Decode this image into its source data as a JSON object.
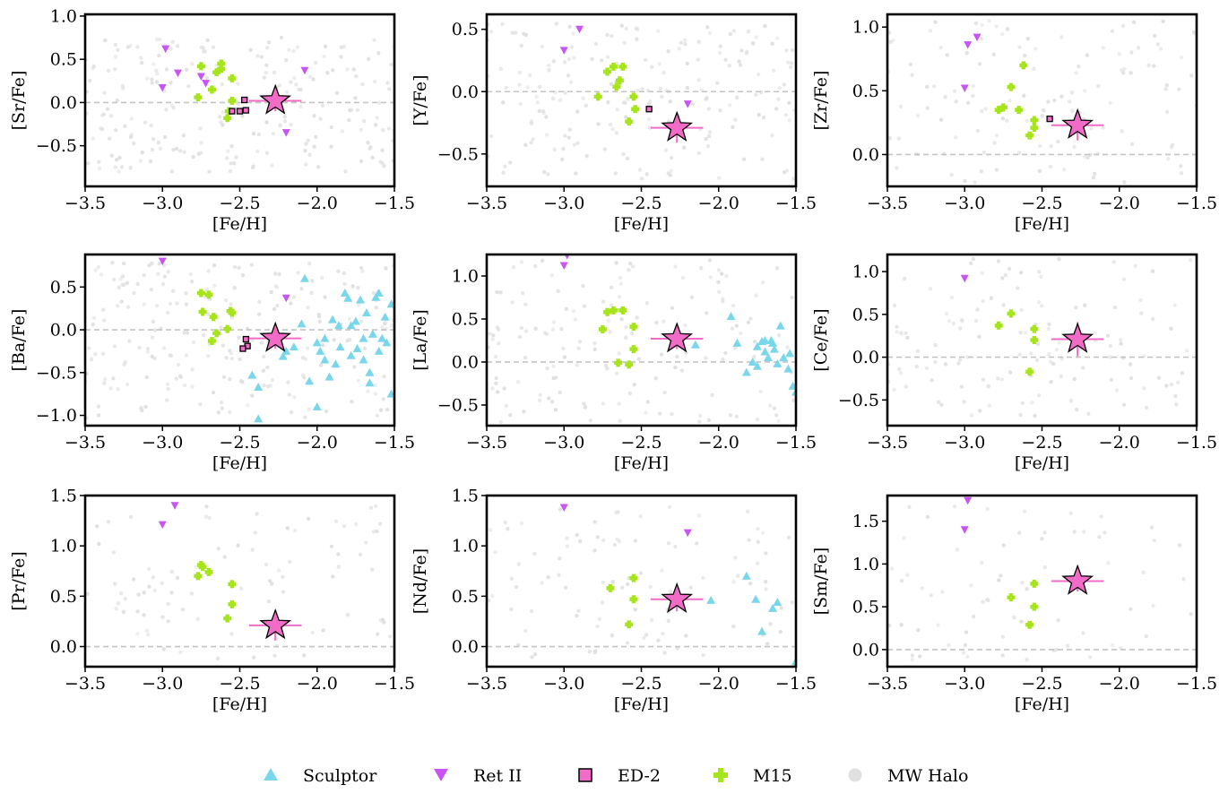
{
  "figure": {
    "legend": [
      {
        "name": "Sculptor",
        "marker": "triangle-up",
        "color": "#7ad6ea"
      },
      {
        "name": "Ret II",
        "marker": "triangle-down",
        "color": "#c855f2"
      },
      {
        "name": "ED-2",
        "marker": "square",
        "color": "#f26bc6"
      },
      {
        "name": "M15",
        "marker": "plus",
        "color": "#a6e41c"
      },
      {
        "name": "MW Halo",
        "marker": "circle",
        "color": "#e0e0e0"
      }
    ],
    "star_color": "#f26bc6"
  },
  "chart_data": [
    {
      "type": "scatter",
      "ylabel": "[Sr/Fe]",
      "xlabel": "[Fe/H]",
      "xlim": [
        -3.5,
        -1.5
      ],
      "ylim": [
        -0.97,
        1.02
      ],
      "xticks": [
        "−3.5",
        "−3.0",
        "−2.5",
        "−2.0",
        "−1.5"
      ],
      "yticks": [
        {
          "v": 1.0,
          "t": "1.0"
        },
        {
          "v": 0.5,
          "t": "0.5"
        },
        {
          "v": 0.0,
          "t": "0.0"
        },
        {
          "v": -0.5,
          "t": "−0.5"
        }
      ],
      "halo_range": [
        -0.8,
        0.75
      ],
      "halo_n": 220,
      "ret2": [
        [
          -2.98,
          0.62
        ],
        [
          -3.0,
          0.17
        ],
        [
          -2.9,
          0.34
        ],
        [
          -2.75,
          0.3
        ],
        [
          -2.72,
          0.22
        ],
        [
          -2.2,
          -0.35
        ],
        [
          -2.08,
          0.37
        ]
      ],
      "m15": [
        [
          -2.75,
          0.42
        ],
        [
          -2.65,
          0.35
        ],
        [
          -2.62,
          0.45
        ],
        [
          -2.62,
          0.39
        ],
        [
          -2.68,
          0.15
        ],
        [
          -2.55,
          0.28
        ],
        [
          -2.55,
          0.02
        ],
        [
          -2.58,
          -0.18
        ],
        [
          -2.57,
          -0.1
        ],
        [
          -2.77,
          0.06
        ]
      ],
      "ed2": [
        [
          -2.55,
          -0.1
        ],
        [
          -2.5,
          -0.1
        ],
        [
          -2.46,
          -0.09
        ],
        [
          -2.47,
          0.03
        ]
      ],
      "sculptor": [],
      "star": {
        "x": -2.27,
        "y": 0.02,
        "xerr": 0.17,
        "yerr": 0.12
      }
    },
    {
      "type": "scatter",
      "ylabel": "[Y/Fe]",
      "xlabel": "[Fe/H]",
      "xlim": [
        -3.5,
        -1.5
      ],
      "ylim": [
        -0.76,
        0.62
      ],
      "xticks": [
        "−3.5",
        "−3.0",
        "−2.5",
        "−2.0",
        "−1.5"
      ],
      "yticks": [
        {
          "v": 0.5,
          "t": "0.5"
        },
        {
          "v": 0.0,
          "t": "0.0"
        },
        {
          "v": -0.5,
          "t": "−0.5"
        }
      ],
      "halo_range": [
        -0.7,
        0.55
      ],
      "halo_n": 200,
      "ret2": [
        [
          -3.0,
          0.33
        ],
        [
          -2.9,
          0.5
        ],
        [
          -2.2,
          -0.1
        ]
      ],
      "m15": [
        [
          -2.72,
          0.16
        ],
        [
          -2.68,
          0.2
        ],
        [
          -2.62,
          0.2
        ],
        [
          -2.64,
          0.09
        ],
        [
          -2.66,
          0.04
        ],
        [
          -2.78,
          -0.04
        ],
        [
          -2.55,
          -0.04
        ],
        [
          -2.54,
          -0.14
        ],
        [
          -2.58,
          -0.24
        ]
      ],
      "ed2": [
        [
          -2.45,
          -0.14
        ]
      ],
      "sculptor": [],
      "star": {
        "x": -2.27,
        "y": -0.29,
        "xerr": 0.17,
        "yerr": 0.12
      }
    },
    {
      "type": "scatter",
      "ylabel": "[Zr/Fe]",
      "xlabel": "[Fe/H]",
      "xlim": [
        -3.5,
        -1.5
      ],
      "ylim": [
        -0.25,
        1.1
      ],
      "xticks": [
        "−3.5",
        "−3.0",
        "−2.5",
        "−2.0",
        "−1.5"
      ],
      "yticks": [
        {
          "v": 1.0,
          "t": "1.0"
        },
        {
          "v": 0.5,
          "t": "0.5"
        },
        {
          "v": 0.0,
          "t": "0.0"
        }
      ],
      "halo_range": [
        -0.22,
        1.05
      ],
      "halo_n": 130,
      "ret2": [
        [
          -2.98,
          0.86
        ],
        [
          -2.92,
          0.92
        ],
        [
          -3.0,
          0.52
        ]
      ],
      "m15": [
        [
          -2.62,
          0.7
        ],
        [
          -2.7,
          0.53
        ],
        [
          -2.75,
          0.37
        ],
        [
          -2.78,
          0.35
        ],
        [
          -2.65,
          0.35
        ],
        [
          -2.55,
          0.27
        ],
        [
          -2.55,
          0.21
        ],
        [
          -2.58,
          0.15
        ]
      ],
      "ed2": [
        [
          -2.45,
          0.28
        ]
      ],
      "sculptor": [],
      "star": {
        "x": -2.27,
        "y": 0.23,
        "xerr": 0.17,
        "yerr": 0.12
      }
    },
    {
      "type": "scatter",
      "ylabel": "[Ba/Fe]",
      "xlabel": "[Fe/H]",
      "xlim": [
        -3.5,
        -1.5
      ],
      "ylim": [
        -1.12,
        0.88
      ],
      "xticks": [
        "−3.5",
        "−3.0",
        "−2.5",
        "−2.0",
        "−1.5"
      ],
      "yticks": [
        {
          "v": 0.5,
          "t": "0.5"
        },
        {
          "v": 0.0,
          "t": "0.0"
        },
        {
          "v": -0.5,
          "t": "−0.5"
        },
        {
          "v": -1.0,
          "t": "−1.0"
        }
      ],
      "halo_range": [
        -1.05,
        0.8
      ],
      "halo_n": 220,
      "ret2": [
        [
          -3.0,
          0.8
        ],
        [
          -2.2,
          0.37
        ]
      ],
      "m15": [
        [
          -2.75,
          0.43
        ],
        [
          -2.7,
          0.41
        ],
        [
          -2.74,
          0.21
        ],
        [
          -2.67,
          0.15
        ],
        [
          -2.56,
          0.22
        ],
        [
          -2.55,
          0.2
        ],
        [
          -2.58,
          0.01
        ],
        [
          -2.65,
          -0.04
        ],
        [
          -2.68,
          -0.13
        ]
      ],
      "ed2": [
        [
          -2.46,
          -0.11
        ],
        [
          -2.45,
          -0.19
        ],
        [
          -2.48,
          -0.22
        ]
      ],
      "sculptor": [
        [
          -2.42,
          -0.53
        ],
        [
          -2.38,
          -0.67
        ],
        [
          -2.38,
          -1.04
        ],
        [
          -2.2,
          -0.25
        ],
        [
          -2.22,
          -0.31
        ],
        [
          -2.15,
          -0.2
        ],
        [
          -2.1,
          0.07
        ],
        [
          -2.08,
          0.6
        ],
        [
          -2.05,
          -0.6
        ],
        [
          -2.0,
          -0.9
        ],
        [
          -1.98,
          -0.25
        ],
        [
          -1.95,
          -0.1
        ],
        [
          -1.92,
          -0.55
        ],
        [
          -1.9,
          0.12
        ],
        [
          -1.88,
          -0.4
        ],
        [
          -1.86,
          0.05
        ],
        [
          -1.82,
          0.43
        ],
        [
          -1.8,
          0.37
        ],
        [
          -1.78,
          -0.3
        ],
        [
          -1.75,
          0.1
        ],
        [
          -1.74,
          -0.22
        ],
        [
          -1.72,
          0.35
        ],
        [
          -1.7,
          -0.1
        ],
        [
          -1.68,
          0.2
        ],
        [
          -1.66,
          -0.5
        ],
        [
          -1.66,
          -0.62
        ],
        [
          -1.64,
          -0.05
        ],
        [
          -1.62,
          0.38
        ],
        [
          -1.6,
          0.43
        ],
        [
          -1.58,
          -0.1
        ],
        [
          -1.56,
          0.15
        ],
        [
          -1.55,
          -0.15
        ],
        [
          -1.52,
          -0.75
        ],
        [
          -1.52,
          0.3
        ],
        [
          -1.85,
          -0.2
        ],
        [
          -1.95,
          -0.35
        ],
        [
          -2.0,
          -0.15
        ],
        [
          -1.78,
          0.05
        ],
        [
          -1.7,
          -0.35
        ],
        [
          -1.6,
          -0.25
        ]
      ],
      "star": {
        "x": -2.27,
        "y": -0.1,
        "xerr": 0.17,
        "yerr": 0.12
      }
    },
    {
      "type": "scatter",
      "ylabel": "[La/Fe]",
      "xlabel": "[Fe/H]",
      "xlim": [
        -3.5,
        -1.5
      ],
      "ylim": [
        -0.74,
        1.25
      ],
      "xticks": [
        "−3.5",
        "−3.0",
        "−2.5",
        "−2.0",
        "−1.5"
      ],
      "yticks": [
        {
          "v": 1.0,
          "t": "1.0"
        },
        {
          "v": 0.5,
          "t": "0.5"
        },
        {
          "v": 0.0,
          "t": "0.0"
        },
        {
          "v": -0.5,
          "t": "−0.5"
        }
      ],
      "halo_range": [
        -0.7,
        1.2
      ],
      "halo_n": 160,
      "ret2": [
        [
          -3.0,
          1.12
        ],
        [
          -2.98,
          1.24
        ]
      ],
      "m15": [
        [
          -2.72,
          0.58
        ],
        [
          -2.68,
          0.6
        ],
        [
          -2.62,
          0.6
        ],
        [
          -2.75,
          0.38
        ],
        [
          -2.55,
          0.41
        ],
        [
          -2.55,
          0.15
        ],
        [
          -2.65,
          -0.01
        ],
        [
          -2.58,
          -0.03
        ]
      ],
      "ed2": [],
      "sculptor": [
        [
          -2.15,
          0.2
        ],
        [
          -1.92,
          0.53
        ],
        [
          -1.88,
          0.22
        ],
        [
          -1.82,
          -0.12
        ],
        [
          -1.78,
          0.0
        ],
        [
          -1.75,
          0.18
        ],
        [
          -1.72,
          0.24
        ],
        [
          -1.7,
          0.12
        ],
        [
          -1.68,
          0.05
        ],
        [
          -1.66,
          0.25
        ],
        [
          -1.64,
          0.15
        ],
        [
          -1.62,
          -0.02
        ],
        [
          -1.6,
          0.42
        ],
        [
          -1.58,
          0.05
        ],
        [
          -1.55,
          -0.08
        ],
        [
          -1.54,
          0.1
        ],
        [
          -1.52,
          -0.28
        ],
        [
          -1.5,
          -0.35
        ],
        [
          -1.7,
          0.25
        ],
        [
          -1.75,
          -0.05
        ],
        [
          -1.65,
          0.22
        ]
      ],
      "star": {
        "x": -2.27,
        "y": 0.27,
        "xerr": 0.17,
        "yerr": 0.12
      }
    },
    {
      "type": "scatter",
      "ylabel": "[Ce/Fe]",
      "xlabel": "[Fe/H]",
      "xlim": [
        -3.5,
        -1.5
      ],
      "ylim": [
        -0.8,
        1.2
      ],
      "xticks": [
        "−3.5",
        "−3.0",
        "−2.5",
        "−2.0",
        "−1.5"
      ],
      "yticks": [
        {
          "v": 1.0,
          "t": "1.0"
        },
        {
          "v": 0.5,
          "t": "0.5"
        },
        {
          "v": 0.0,
          "t": "0.0"
        },
        {
          "v": -0.5,
          "t": "−0.5"
        }
      ],
      "halo_range": [
        -0.7,
        1.15
      ],
      "halo_n": 130,
      "ret2": [
        [
          -3.0,
          0.92
        ]
      ],
      "m15": [
        [
          -2.7,
          0.51
        ],
        [
          -2.78,
          0.37
        ],
        [
          -2.55,
          0.33
        ],
        [
          -2.55,
          0.2
        ],
        [
          -2.58,
          -0.17
        ]
      ],
      "ed2": [],
      "sculptor": [],
      "star": {
        "x": -2.27,
        "y": 0.21,
        "xerr": 0.17,
        "yerr": 0.2
      }
    },
    {
      "type": "scatter",
      "ylabel": "[Pr/Fe]",
      "xlabel": "[Fe/H]",
      "xlim": [
        -3.5,
        -1.5
      ],
      "ylim": [
        -0.2,
        1.5
      ],
      "xticks": [
        "−3.5",
        "−3.0",
        "−2.5",
        "−2.0",
        "−1.5"
      ],
      "yticks": [
        {
          "v": 1.5,
          "t": "1.5"
        },
        {
          "v": 1.0,
          "t": "1.0"
        },
        {
          "v": 0.5,
          "t": "0.5"
        },
        {
          "v": 0.0,
          "t": "0.0"
        }
      ],
      "halo_range": [
        -0.15,
        1.4
      ],
      "halo_n": 90,
      "ret2": [
        [
          -3.0,
          1.21
        ],
        [
          -2.92,
          1.4
        ]
      ],
      "m15": [
        [
          -2.75,
          0.81
        ],
        [
          -2.74,
          0.79
        ],
        [
          -2.77,
          0.7
        ],
        [
          -2.7,
          0.74
        ],
        [
          -2.55,
          0.62
        ],
        [
          -2.55,
          0.42
        ],
        [
          -2.58,
          0.28
        ]
      ],
      "ed2": [],
      "sculptor": [],
      "star": {
        "x": -2.27,
        "y": 0.21,
        "xerr": 0.17,
        "yerr": 0.15
      }
    },
    {
      "type": "scatter",
      "ylabel": "[Nd/Fe]",
      "xlabel": "[Fe/H]",
      "xlim": [
        -3.5,
        -1.5
      ],
      "ylim": [
        -0.2,
        1.5
      ],
      "xticks": [
        "−3.5",
        "−3.0",
        "−2.5",
        "−2.0",
        "−1.5"
      ],
      "yticks": [
        {
          "v": 1.5,
          "t": "1.5"
        },
        {
          "v": 1.0,
          "t": "1.0"
        },
        {
          "v": 0.5,
          "t": "0.5"
        },
        {
          "v": 0.0,
          "t": "0.0"
        }
      ],
      "halo_range": [
        -0.15,
        1.4
      ],
      "halo_n": 100,
      "ret2": [
        [
          -3.0,
          1.38
        ],
        [
          -2.2,
          1.13
        ]
      ],
      "m15": [
        [
          -2.7,
          0.58
        ],
        [
          -2.55,
          0.68
        ],
        [
          -2.55,
          0.47
        ],
        [
          -2.58,
          0.22
        ]
      ],
      "ed2": [],
      "sculptor": [
        [
          -2.05,
          0.46
        ],
        [
          -1.82,
          0.7
        ],
        [
          -1.76,
          0.47
        ],
        [
          -1.72,
          0.15
        ],
        [
          -1.65,
          0.38
        ],
        [
          -1.62,
          0.44
        ],
        [
          -1.5,
          -0.15
        ]
      ],
      "star": {
        "x": -2.27,
        "y": 0.47,
        "xerr": 0.17,
        "yerr": 0.12
      }
    },
    {
      "type": "scatter",
      "ylabel": "[Sm/Fe]",
      "xlabel": "[Fe/H]",
      "xlim": [
        -3.5,
        -1.5
      ],
      "ylim": [
        -0.2,
        1.8
      ],
      "xticks": [
        "−3.5",
        "−3.0",
        "−2.5",
        "−2.0",
        "−1.5"
      ],
      "yticks": [
        {
          "v": 1.5,
          "t": "1.5"
        },
        {
          "v": 1.0,
          "t": "1.0"
        },
        {
          "v": 0.5,
          "t": "0.5"
        },
        {
          "v": 0.0,
          "t": "0.0"
        }
      ],
      "halo_range": [
        -0.15,
        1.7
      ],
      "halo_n": 70,
      "ret2": [
        [
          -3.0,
          1.4
        ],
        [
          -2.98,
          1.74
        ]
      ],
      "m15": [
        [
          -2.7,
          0.61
        ],
        [
          -2.55,
          0.77
        ],
        [
          -2.55,
          0.5
        ],
        [
          -2.58,
          0.29
        ]
      ],
      "ed2": [],
      "sculptor": [],
      "star": {
        "x": -2.27,
        "y": 0.8,
        "xerr": 0.17,
        "yerr": 0.12
      }
    }
  ]
}
